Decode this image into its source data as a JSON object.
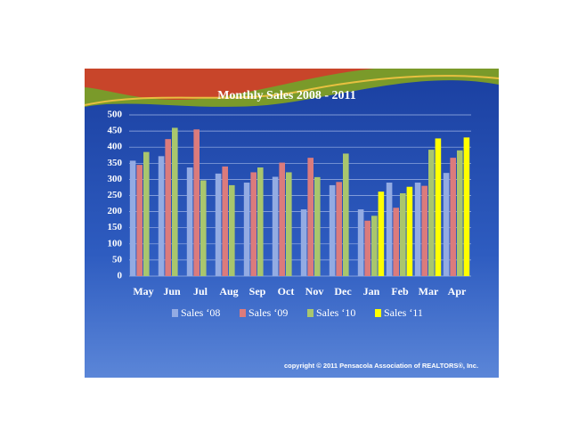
{
  "chart_data": {
    "type": "bar",
    "title": "Monthly Sales 2008 - 2011",
    "categories": [
      "May",
      "Jun",
      "Jul",
      "Aug",
      "Sep",
      "Oct",
      "Nov",
      "Dec",
      "Jan",
      "Feb",
      "Mar",
      "Apr"
    ],
    "series": [
      {
        "name": "Sales ‘08",
        "color": "#93abe3",
        "values": [
          358,
          372,
          337,
          318,
          290,
          308,
          207,
          282,
          207,
          290,
          290,
          320
        ]
      },
      {
        "name": "Sales ‘09",
        "color": "#db7b7c",
        "values": [
          345,
          425,
          455,
          340,
          322,
          352,
          367,
          292,
          172,
          212,
          280,
          367
        ]
      },
      {
        "name": "Sales ‘10",
        "color": "#a9c66d",
        "values": [
          385,
          460,
          297,
          282,
          337,
          322,
          307,
          380,
          187,
          257,
          392,
          390
        ]
      },
      {
        "name": "Sales ‘11",
        "color": "#ffff00",
        "values": [
          null,
          null,
          null,
          null,
          null,
          null,
          null,
          null,
          262,
          277,
          427,
          430
        ]
      }
    ],
    "ylim": [
      0,
      500
    ],
    "yticks": [
      0,
      50,
      100,
      150,
      200,
      250,
      300,
      350,
      400,
      450,
      500
    ],
    "grid": true,
    "footnote": "copyright © 2011 Pensacola Association of REALTORS®, Inc."
  }
}
